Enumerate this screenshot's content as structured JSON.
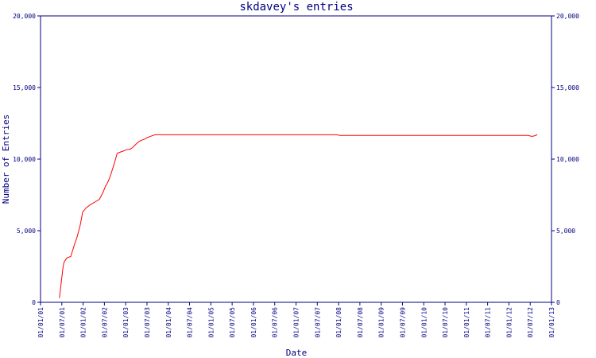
{
  "chart_data": {
    "type": "line",
    "title": "skdavey's entries",
    "xlabel": "Date",
    "ylabel": "Number of Entries",
    "ylim": [
      0,
      20000
    ],
    "xlim": [
      "2001-01-01",
      "2013-01-01"
    ],
    "y_ticks": [
      "0",
      "5,000",
      "10,000",
      "15,000",
      "20,000"
    ],
    "y_ticks_right": [
      "0",
      "5,000",
      "10,000",
      "15,000",
      "20,000"
    ],
    "x_ticks": [
      "01/01/01",
      "01/07/01",
      "01/01/02",
      "01/07/02",
      "01/01/03",
      "01/07/03",
      "01/01/04",
      "01/07/04",
      "01/01/05",
      "01/07/05",
      "01/01/06",
      "01/07/06",
      "01/01/07",
      "01/07/07",
      "01/01/08",
      "01/07/08",
      "01/01/09",
      "01/07/09",
      "01/01/10",
      "01/07/10",
      "01/01/11",
      "01/07/11",
      "01/01/12",
      "01/07/12",
      "01/01/13"
    ],
    "grid": false,
    "colors": {
      "axis": "#000080",
      "line": "#ff0000"
    },
    "series": [
      {
        "x": [
          "2001-06-12",
          "2001-06-28",
          "2001-07-12",
          "2001-07-22",
          "2001-08-15",
          "2001-09-18",
          "2001-10-18",
          "2001-11-12",
          "2001-12-08",
          "2001-12-28",
          "2002-01-28",
          "2002-03-02",
          "2002-04-12",
          "2002-05-22",
          "2002-06-22",
          "2002-07-12",
          "2002-08-02",
          "2002-08-22",
          "2002-09-22",
          "2002-10-20",
          "2002-11-20",
          "2002-12-08",
          "2003-01-05",
          "2003-02-10",
          "2003-02-28",
          "2003-03-25",
          "2003-04-20",
          "2003-05-12",
          "2003-05-28",
          "2003-06-15",
          "2003-07-05",
          "2003-08-05",
          "2003-09-10",
          "2004-01-01",
          "2005-01-01",
          "2006-01-01",
          "2007-01-01",
          "2007-12-20",
          "2008-01-10",
          "2009-01-01",
          "2010-01-01",
          "2011-01-01",
          "2012-01-01",
          "2012-06-15",
          "2012-07-10",
          "2012-07-28",
          "2012-09-01"
        ],
        "y": [
          300,
          1400,
          2400,
          2800,
          3100,
          3200,
          4000,
          4600,
          5400,
          6300,
          6600,
          6800,
          7000,
          7200,
          7700,
          8100,
          8400,
          8800,
          9600,
          10400,
          10500,
          10550,
          10650,
          10700,
          10800,
          11000,
          11200,
          11300,
          11350,
          11400,
          11500,
          11600,
          11700,
          11700,
          11700,
          11700,
          11700,
          11700,
          11650,
          11650,
          11650,
          11650,
          11650,
          11650,
          11600,
          11600,
          11700
        ]
      }
    ]
  }
}
